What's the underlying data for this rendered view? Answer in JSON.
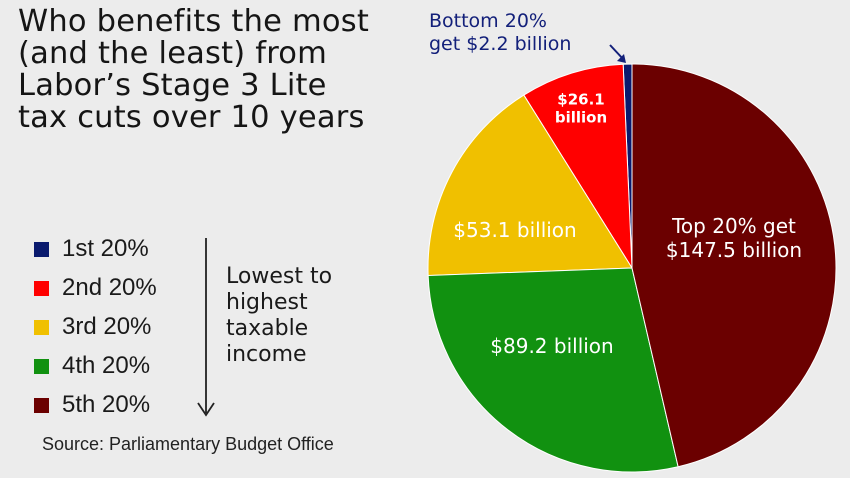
{
  "chart_data": {
    "type": "pie",
    "title_lines": [
      "Who benefits the most",
      "(and the least) from",
      "Labor’s Stage 3 Lite",
      "tax cuts over 10 years"
    ],
    "slices": [
      {
        "name": "1st 20%",
        "value": 2.2,
        "color": "#0a1a6e",
        "label_lines": []
      },
      {
        "name": "2nd 20%",
        "value": 26.1,
        "color": "#ff0000",
        "label_lines": [
          "$26.1",
          "billion"
        ]
      },
      {
        "name": "3rd 20%",
        "value": 53.1,
        "color": "#f0c000",
        "label_lines": [
          "$53.1 billion"
        ]
      },
      {
        "name": "4th 20%",
        "value": 89.2,
        "color": "#119110",
        "label_lines": [
          "$89.2 billion"
        ]
      },
      {
        "name": "5th 20%",
        "value": 147.5,
        "color": "#6b0000",
        "label_lines": [
          "Top 20% get",
          "$147.5 billion"
        ]
      }
    ],
    "callout_lines": [
      "Bottom 20%",
      "get $2.2 billion"
    ],
    "callout_color": "#13207a",
    "legend_note_lines": [
      "Lowest to",
      "highest",
      "taxable",
      "income"
    ],
    "legend_note_icon": "down-arrow-icon",
    "source": "Source: Parliamentary Budget Office"
  }
}
